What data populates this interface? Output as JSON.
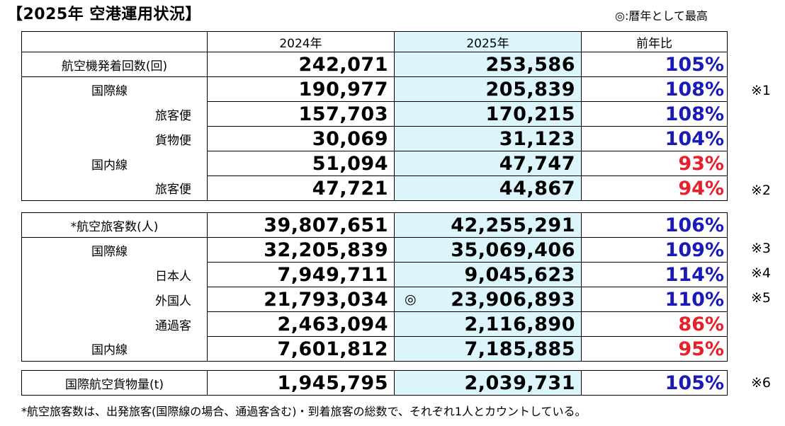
{
  "title": "【2025年 空港運用状況】",
  "legend": "◎:暦年として最高",
  "headers": [
    "",
    "2024年",
    "2025年",
    "前年比"
  ],
  "record_mark": "◎",
  "section1": [
    {
      "label": "航空機発着回数(回)",
      "y2024": "242,071",
      "y2025": "253,586",
      "ratio": "105%"
    },
    {
      "label": "国際線",
      "y2024": "190,977",
      "y2025": "205,839",
      "ratio": "108%"
    },
    {
      "label": "旅客便",
      "y2024": "157,703",
      "y2025": "170,215",
      "ratio": "108%"
    },
    {
      "label": "貨物便",
      "y2024": "30,069",
      "y2025": "31,123",
      "ratio": "104%"
    },
    {
      "label": "国内線",
      "y2024": "51,094",
      "y2025": "47,747",
      "ratio": "93%"
    },
    {
      "label": "旅客便",
      "y2024": "47,721",
      "y2025": "44,867",
      "ratio": "94%"
    }
  ],
  "section2": [
    {
      "label": "*航空旅客数(人)",
      "y2024": "39,807,651",
      "y2025": "42,255,291",
      "ratio": "106%"
    },
    {
      "label": "国際線",
      "y2024": "32,205,839",
      "y2025": "35,069,406",
      "ratio": "109%"
    },
    {
      "label": "日本人",
      "y2024": "7,949,711",
      "y2025": "9,045,623",
      "ratio": "114%"
    },
    {
      "label": "外国人",
      "y2024": "21,793,034",
      "y2025": "23,906,893",
      "ratio": "110%"
    },
    {
      "label": "通過客",
      "y2024": "2,463,094",
      "y2025": "2,116,890",
      "ratio": "86%"
    },
    {
      "label": "国内線",
      "y2024": "7,601,812",
      "y2025": "7,185,885",
      "ratio": "95%"
    }
  ],
  "section3": [
    {
      "label": "国際航空貨物量(t)",
      "y2024": "1,945,795",
      "y2025": "2,039,731",
      "ratio": "105%"
    }
  ],
  "notes": {
    "n1": "※1",
    "n2": "※2",
    "n3": "※3",
    "n4": "※4",
    "n5": "※5",
    "n6": "※6"
  },
  "footnote": "*航空旅客数は、出発旅客(国際線の場合、通過客含む)・到着旅客の総数で、それぞれ1人とカウントしている。",
  "colors": {
    "highlight": "#dbf5fa",
    "increase": "#1a1ab8",
    "decrease": "#e8202a"
  }
}
